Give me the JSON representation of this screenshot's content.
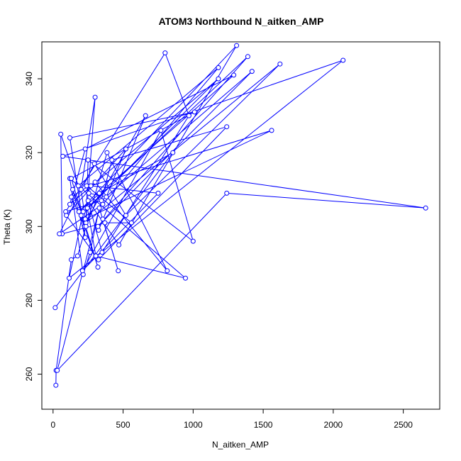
{
  "chart_data": {
    "type": "line",
    "title": "ATOM3 Northbound N_aitken_AMP",
    "xlabel": "N_aitken_AMP",
    "ylabel": "Theta (K)",
    "xlim": [
      -80,
      2760
    ],
    "ylim": [
      250.5,
      350
    ],
    "xticks": [
      0,
      500,
      1000,
      1500,
      2000,
      2500
    ],
    "yticks": [
      260,
      280,
      300,
      320,
      340
    ],
    "grid": false,
    "legend": "none",
    "marker": "open-circle",
    "series": [
      {
        "color": "#0000ff",
        "x": [
          20,
          22,
          130,
          175,
          385,
          815,
          300,
          130,
          225,
          245,
          305,
          945,
          120,
          215,
          265,
          330,
          465,
          355,
          325,
          660,
          230,
          140,
          230,
          120,
          1010,
          130,
          320,
          200,
          1180,
          120,
          230,
          1290,
          185,
          1310,
          470,
          250,
          350,
          970,
          800,
          90,
          345,
          1420,
          320,
          1390,
          215,
          115,
          2070,
          70,
          2660,
          1240,
          30,
          420,
          1240,
          325,
          305,
          95,
          520,
          380,
          255,
          240,
          560,
          370,
          65,
          55,
          180,
          1180,
          355,
          45,
          295,
          520,
          1620,
          235,
          300,
          200,
          230,
          1560,
          270,
          750,
          210,
          770,
          1000,
          250,
          235,
          330,
          855,
          15
        ],
        "y": [
          257,
          261,
          291,
          292,
          320,
          288,
          312,
          308,
          300,
          305,
          292,
          286,
          313,
          287,
          293,
          305,
          288,
          302,
          299,
          330,
          301,
          310,
          297,
          324,
          331,
          313,
          289,
          303,
          340,
          306,
          321,
          341,
          304,
          349,
          295,
          307,
          293,
          330,
          347,
          304,
          307,
          342,
          300,
          346,
          304,
          286,
          345,
          319,
          305,
          309,
          261,
          318,
          327,
          291,
          292,
          303,
          321,
          308,
          309,
          311,
          301,
          301,
          298,
          325,
          311,
          343,
          306,
          298,
          317,
          303,
          344,
          301,
          335,
          310,
          302,
          326,
          311,
          309,
          288,
          326,
          296,
          318,
          300,
          309,
          320,
          278
        ]
      }
    ]
  }
}
